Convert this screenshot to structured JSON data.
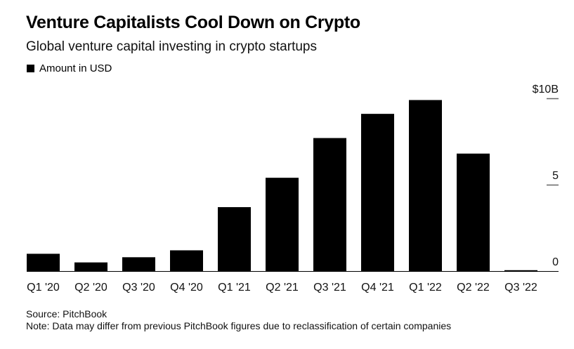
{
  "header": {
    "title": "Venture Capitalists Cool Down on Crypto",
    "subtitle": "Global venture capital investing in crypto startups",
    "legend_label": "Amount in USD"
  },
  "footer": {
    "source": "Source: PitchBook",
    "note": "Note: Data may differ from previous PitchBook figures due to reclassification of certain companies"
  },
  "chart_data": {
    "type": "bar",
    "title": "Venture Capitalists Cool Down on Crypto",
    "subtitle": "Global venture capital investing in crypto startups",
    "xlabel": "",
    "ylabel": "Amount in USD (billions)",
    "categories": [
      "Q1 '20",
      "Q2 '20",
      "Q3 '20",
      "Q4 '20",
      "Q1 '21",
      "Q2 '21",
      "Q3 '21",
      "Q4 '21",
      "Q1 '22",
      "Q2 '22",
      "Q3 '22"
    ],
    "series": [
      {
        "name": "Amount in USD",
        "color": "#000000",
        "values": [
          1.0,
          0.5,
          0.8,
          1.2,
          3.7,
          5.4,
          7.7,
          9.1,
          9.9,
          6.8,
          0.05
        ]
      }
    ],
    "ylim": [
      0,
      10
    ],
    "yticks": [
      0,
      5,
      10
    ],
    "ytick_labels": [
      "0",
      "5",
      "$10B"
    ],
    "y_axis_side": "right",
    "grid": false,
    "legend": "top-left"
  }
}
